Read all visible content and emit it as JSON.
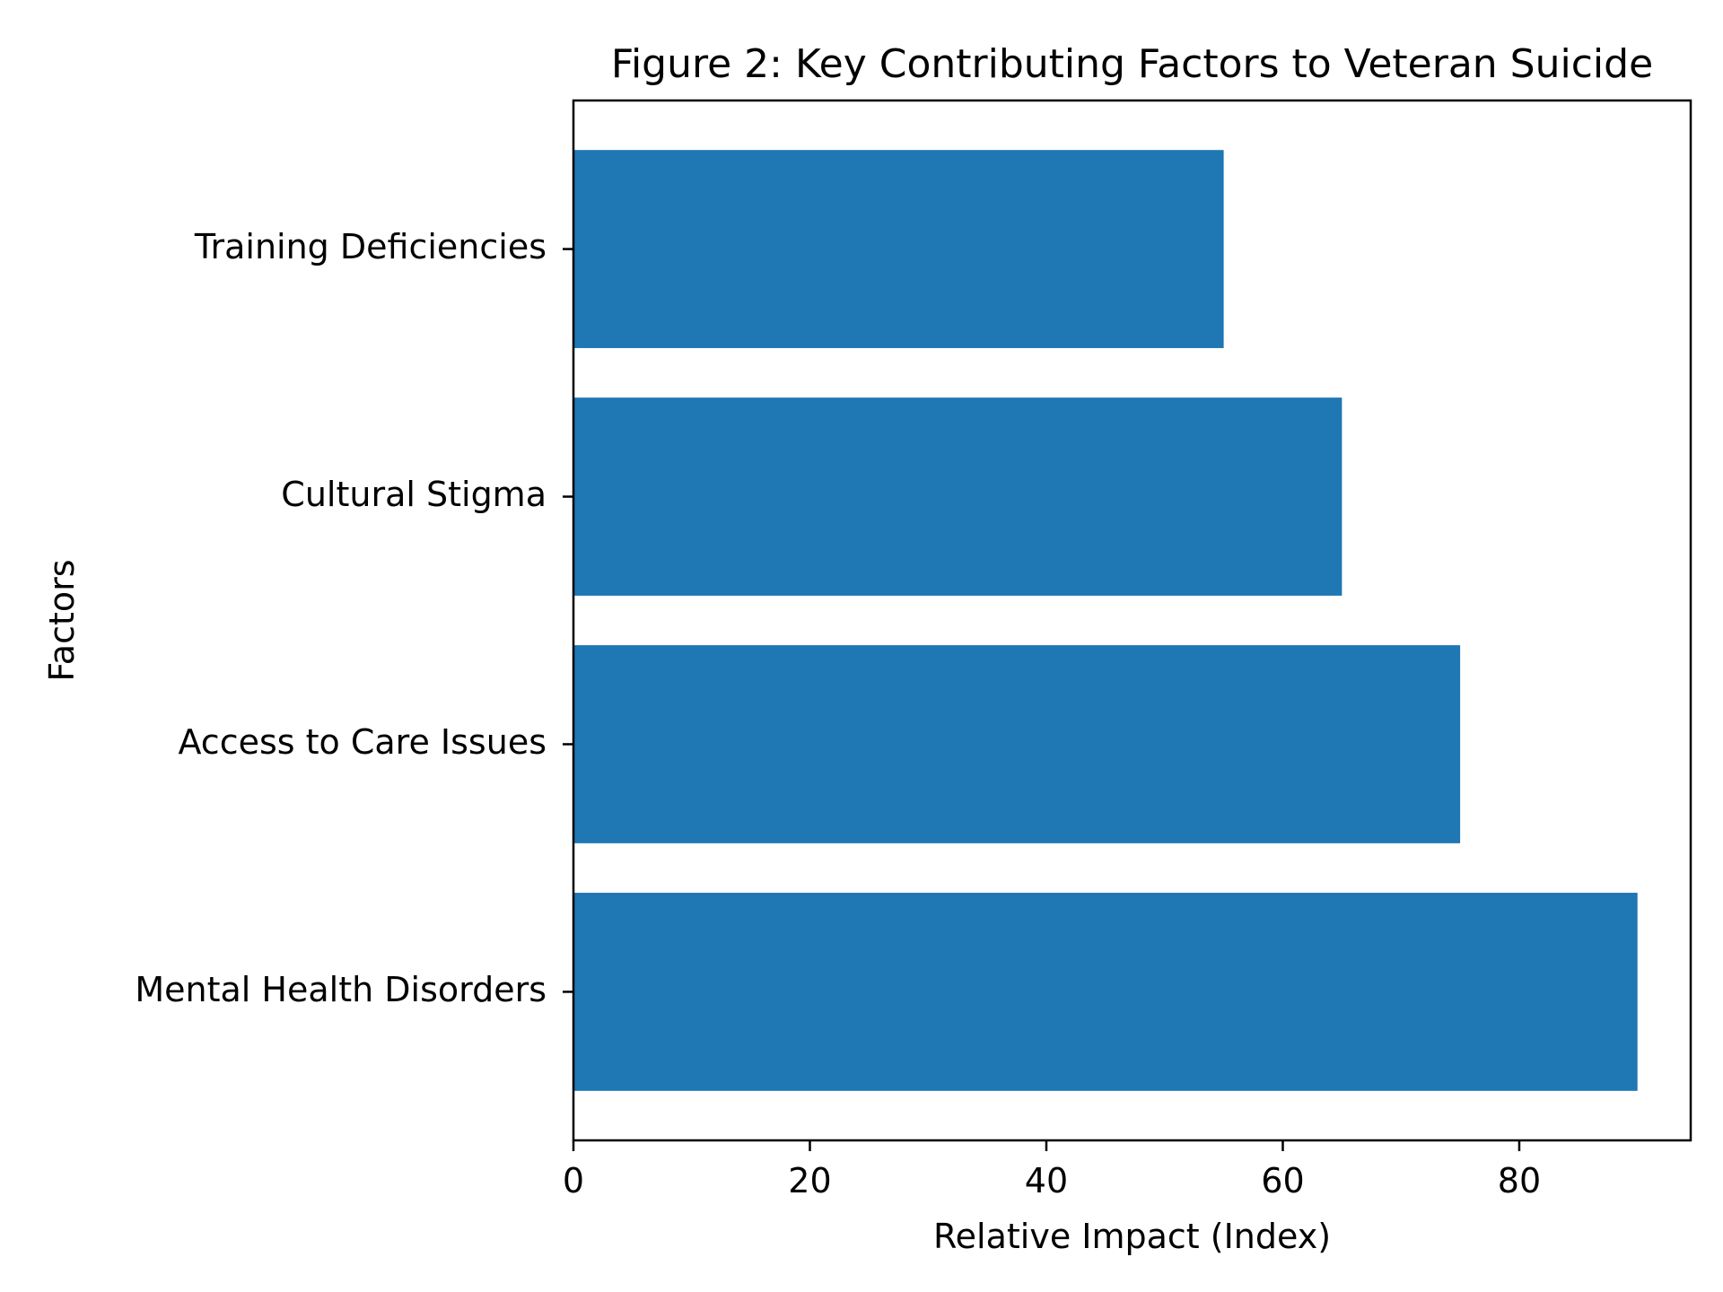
{
  "chart_data": {
    "type": "bar",
    "orientation": "horizontal",
    "title": "Figure 2: Key Contributing Factors to Veteran Suicide",
    "xlabel": "Relative Impact (Index)",
    "ylabel": "Factors",
    "categories": [
      "Mental Health Disorders",
      "Access to Care Issues",
      "Cultural Stigma",
      "Training Deficiencies"
    ],
    "values": [
      90,
      75,
      65,
      55
    ],
    "xlim": [
      0,
      94.5
    ],
    "xticks": [
      0,
      20,
      40,
      60,
      80
    ],
    "grid": false,
    "legend": "none",
    "bar_color": "#1f77b4"
  }
}
